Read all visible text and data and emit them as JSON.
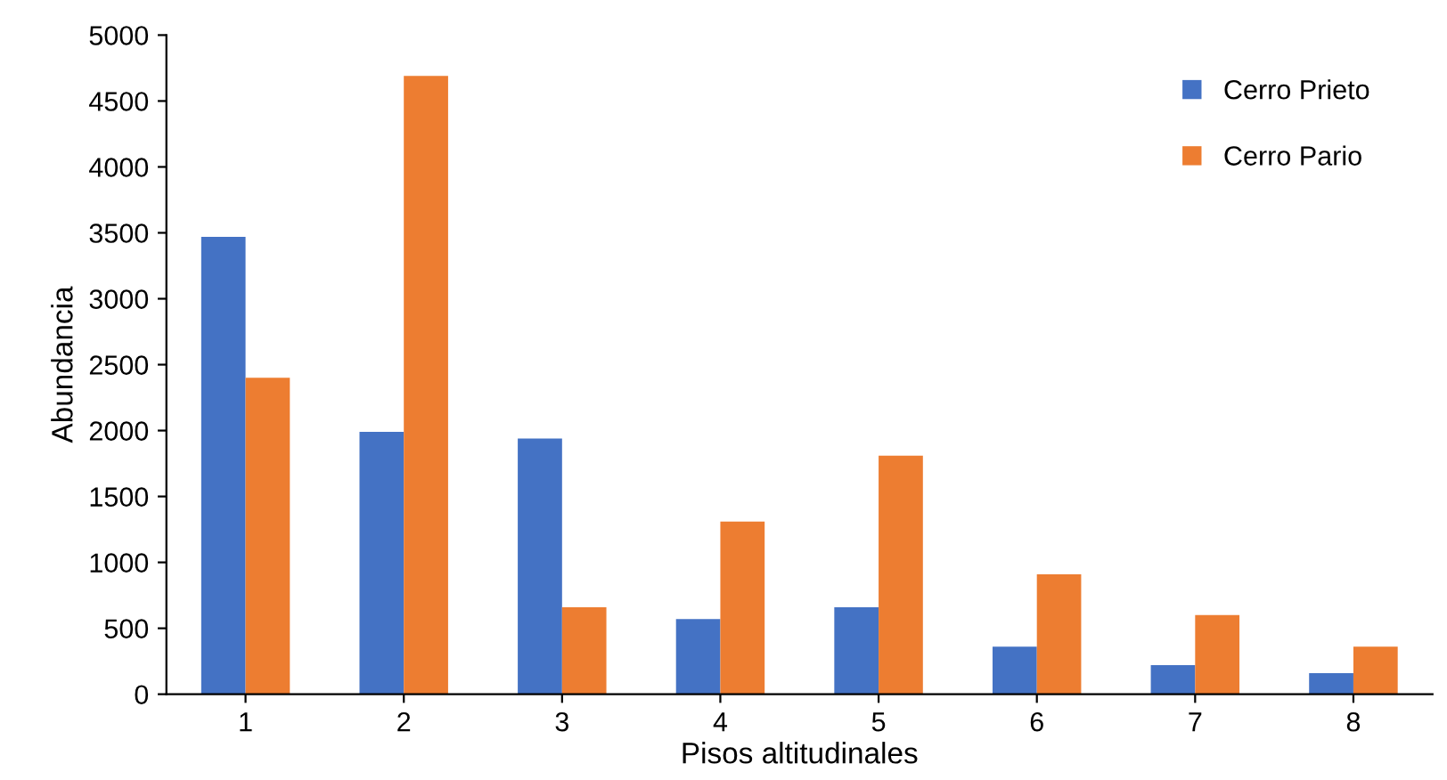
{
  "chart_data": {
    "type": "bar",
    "xlabel": "Pisos altitudinales",
    "ylabel": "Abundancia",
    "categories": [
      "1",
      "2",
      "3",
      "4",
      "5",
      "6",
      "7",
      "8"
    ],
    "series": [
      {
        "name": "Cerro Prieto",
        "color": "#4472c4",
        "values": [
          3470,
          1990,
          1940,
          570,
          660,
          360,
          220,
          160
        ]
      },
      {
        "name": "Cerro Pario",
        "color": "#ed7d31",
        "values": [
          2400,
          4690,
          660,
          1310,
          1810,
          910,
          600,
          360
        ]
      }
    ],
    "ylim": [
      0,
      5000
    ],
    "yticks": [
      0,
      500,
      1000,
      1500,
      2000,
      2500,
      3000,
      3500,
      4000,
      4500,
      5000
    ],
    "grid": false,
    "legend": "top right"
  }
}
